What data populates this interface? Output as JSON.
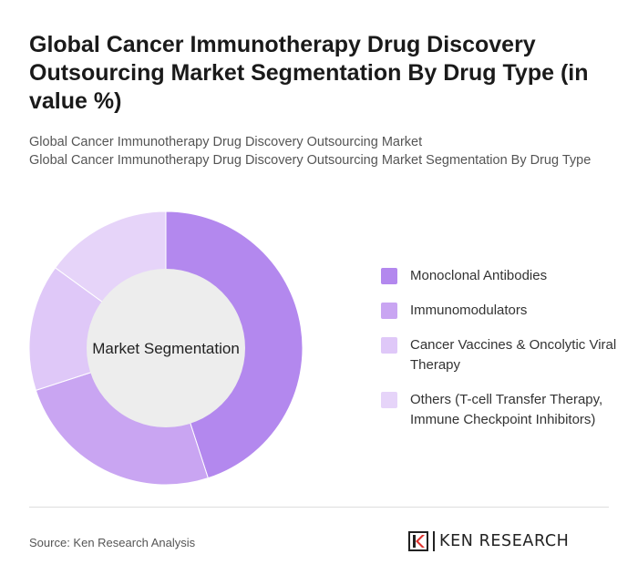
{
  "title": "Global Cancer Immunotherapy Drug Discovery Outsourcing Market Segmentation By Drug Type (in value %)",
  "subtitle_line1": "Global Cancer Immunotherapy Drug Discovery Outsourcing Market",
  "subtitle_line2": "Global Cancer Immunotherapy Drug Discovery Outsourcing Market Segmentation By Drug Type",
  "chart_data": {
    "type": "pie",
    "center_label": "Market Segmentation",
    "categories": [
      "Monoclonal Antibodies",
      "Immunomodulators",
      "Cancer Vaccines & Oncolytic Viral Therapy",
      "Others (T-cell Transfer Therapy, Immune Checkpoint Inhibitors)"
    ],
    "values": [
      45,
      25,
      15,
      15
    ],
    "colors": [
      "#b388ee",
      "#c9a5f2",
      "#dfc8f8",
      "#e6d4f9"
    ],
    "legend_position": "right"
  },
  "source": "Source: Ken Research Analysis",
  "logo": {
    "icon": "ken-research-logo-icon",
    "text": "KEN RESEARCH"
  }
}
